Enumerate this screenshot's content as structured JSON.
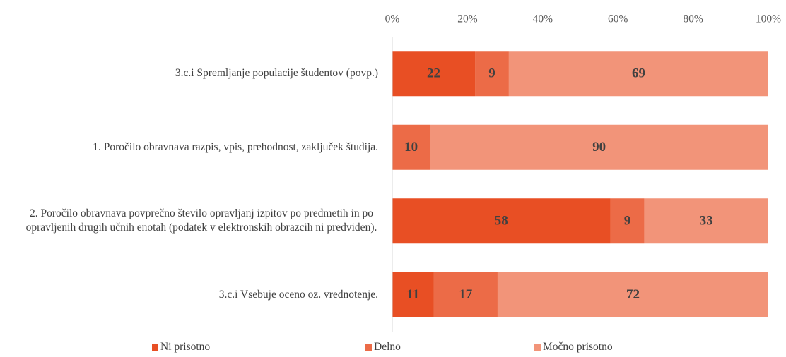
{
  "chart_data": {
    "type": "stacked_barh",
    "categories": [
      "3.c.i Spremljanje populacije študentov (povp.)",
      "1.  Poročilo obravnava razpis, vpis, prehodnost, zaključek študija.",
      "2.  Poročilo obravnava povprečno število opravljanj izpitov po predmetih in po opravljenih drugih učnih enotah (podatek v elektronskih obrazcih ni predviden).",
      "3.c.i Vsebuje oceno oz. vrednotenje."
    ],
    "series": [
      {
        "name": "Ni prisotno",
        "color": "#e84f24",
        "values": [
          22,
          null,
          58,
          11
        ]
      },
      {
        "name": "Delno",
        "color": "#ec6b47",
        "values": [
          9,
          10,
          9,
          17
        ]
      },
      {
        "name": "Močno prisotno",
        "color": "#f29479",
        "values": [
          69,
          90,
          33,
          72
        ]
      }
    ],
    "xlim": [
      0,
      100
    ],
    "xticks": [
      {
        "value": 0,
        "label": "0%"
      },
      {
        "value": 20,
        "label": "20%"
      },
      {
        "value": 40,
        "label": "40%"
      },
      {
        "value": 60,
        "label": "60%"
      },
      {
        "value": 80,
        "label": "80%"
      },
      {
        "value": 100,
        "label": "100%"
      }
    ],
    "legend": "bottom"
  }
}
